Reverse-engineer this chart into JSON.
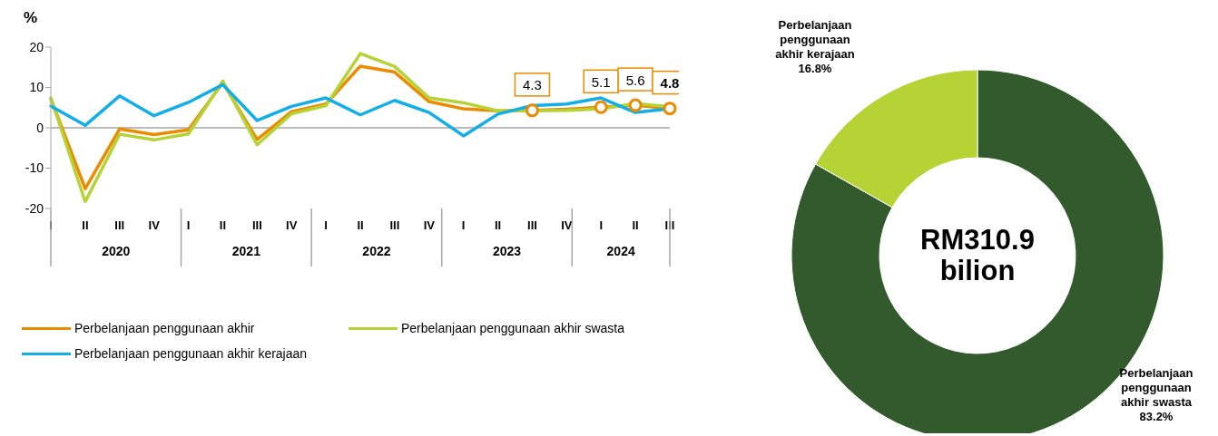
{
  "chart_data": [
    {
      "type": "line",
      "ylabel": "%",
      "categories": [
        "I",
        "II",
        "III",
        "IV",
        "I",
        "II",
        "III",
        "IV",
        "I",
        "II",
        "III",
        "IV",
        "I",
        "II",
        "III",
        "IV",
        "I",
        "II",
        "III"
      ],
      "annotations": [
        "2020",
        "2021",
        "2022",
        "2023",
        "2024"
      ],
      "series": [
        {
          "name": "Perbelanjaan penggunaan akhir",
          "color": "#ed8b00",
          "values": [
            7.2,
            -15.1,
            -0.3,
            -1.7,
            -0.5,
            11.2,
            -2.9,
            4.0,
            5.9,
            15.3,
            13.8,
            6.5,
            4.7,
            4.2,
            4.3,
            4.6,
            5.1,
            5.6,
            4.8
          ],
          "value_labels": [
            null,
            null,
            null,
            null,
            null,
            null,
            null,
            null,
            null,
            null,
            null,
            null,
            null,
            null,
            "4.3",
            null,
            "5.1",
            "5.6",
            "4.8"
          ]
        },
        {
          "name": "Perbelanjaan penggunaan akhir swasta",
          "color": "#b5d334",
          "values": [
            7.4,
            -18.3,
            -1.6,
            -3.0,
            -1.5,
            11.6,
            -4.2,
            3.5,
            5.5,
            18.4,
            15.2,
            7.4,
            6.2,
            4.2,
            4.2,
            4.3,
            4.7,
            6.0,
            5.2
          ]
        },
        {
          "name": "Perbelanjaan penggunaan akhir kerajaan",
          "color": "#12aee8",
          "values": [
            5.4,
            0.6,
            7.9,
            3.0,
            6.3,
            10.7,
            1.8,
            5.3,
            7.4,
            3.2,
            6.8,
            3.8,
            -2.0,
            3.4,
            5.5,
            5.9,
            7.4,
            3.8,
            4.7
          ]
        }
      ],
      "ylim": [
        -20,
        20
      ],
      "yticks": [
        -20,
        -10,
        0,
        10,
        20
      ],
      "legend": "bottom",
      "marker": "none",
      "line_style": "solid",
      "ref_lines": [
        {
          "axis": "y",
          "value": 0,
          "color": "#a6a6a6"
        }
      ]
    },
    {
      "type": "donut",
      "categories": [
        "Perbelanjaan penggunaan akhir swasta",
        "Perbelanjaan penggunaan akhir kerajaan"
      ],
      "values": [
        83.2,
        16.8
      ],
      "colors": [
        "#335a2d",
        "#b5d334"
      ],
      "value_labels": [
        "83.2%",
        "16.8%"
      ],
      "annotations": [
        "RM310.9 bilion"
      ]
    }
  ]
}
